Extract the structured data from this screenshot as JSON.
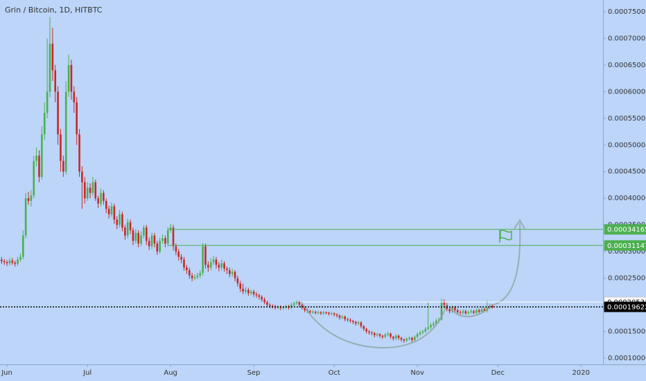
{
  "chart_data": {
    "type": "candlestick",
    "title": "Grin / Bitcoin, 1D, HITBTC",
    "up_color": "#4caf50",
    "down_color": "#c62828",
    "xlim": [
      -0.6,
      224.2
    ],
    "xticks": [
      {
        "value": 2,
        "label": "Jun"
      },
      {
        "value": 32,
        "label": "Jul"
      },
      {
        "value": 63,
        "label": "Aug"
      },
      {
        "value": 94,
        "label": "Sep"
      },
      {
        "value": 124,
        "label": "Oct"
      },
      {
        "value": 155,
        "label": "Nov"
      },
      {
        "value": 185,
        "label": "Dec"
      },
      {
        "value": 216,
        "label": "2020"
      }
    ],
    "ylim": [
      5.71e-05,
      0.000772
    ],
    "yticks": [
      {
        "value": 0.00075,
        "label": "0.00075000"
      },
      {
        "value": 0.0007,
        "label": "0.00070000"
      },
      {
        "value": 0.00065,
        "label": "0.00065000"
      },
      {
        "value": 0.0006,
        "label": "0.00060000"
      },
      {
        "value": 0.00055,
        "label": "0.00055000"
      },
      {
        "value": 0.0005,
        "label": "0.00050000"
      },
      {
        "value": 0.00045,
        "label": "0.00045000"
      },
      {
        "value": 0.0004,
        "label": "0.00040000"
      },
      {
        "value": 0.00035,
        "label": "0.00035000"
      },
      {
        "value": 0.0003,
        "label": "0.00030000"
      },
      {
        "value": 0.00025,
        "label": "0.00025000"
      },
      {
        "value": 0.0002,
        "label": "0.00020000"
      },
      {
        "value": 0.00015,
        "label": "0.00015000"
      },
      {
        "value": 0.0001,
        "label": "0.00010000"
      }
    ],
    "levels": [
      {
        "value": 0.00034165,
        "color": "#4caf50",
        "text_color": "#ffffff",
        "style": "solid",
        "from": 62
      },
      {
        "value": 0.00031147,
        "color": "#4caf50",
        "text_color": "#ffffff",
        "style": "solid",
        "from": 62
      },
      {
        "value": 0.00020531,
        "color": "#ffffff",
        "text_color": "#000000",
        "style": "solid",
        "from": 112
      },
      {
        "value": 0.00019622,
        "color": "#000000",
        "text_color": "#ffffff",
        "style": "dotted",
        "from": -0.6
      }
    ],
    "ohlc": [
      [
        0.000285,
        0.00029,
        0.000277,
        0.000282
      ],
      [
        0.000282,
        0.000286,
        0.000275,
        0.00028
      ],
      [
        0.00028,
        0.000284,
        0.000273,
        0.000278
      ],
      [
        0.000278,
        0.000288,
        0.000274,
        0.000283
      ],
      [
        0.000283,
        0.000288,
        0.000275,
        0.000279
      ],
      [
        0.000279,
        0.000283,
        0.000272,
        0.000277
      ],
      [
        0.000277,
        0.00029,
        0.000273,
        0.000285
      ],
      [
        0.000285,
        0.000296,
        0.000281,
        0.00029
      ],
      [
        0.00029,
        0.00034,
        0.000285,
        0.00033
      ],
      [
        0.00033,
        0.00041,
        0.000325,
        0.0004
      ],
      [
        0.0004,
        0.000412,
        0.000388,
        0.000395
      ],
      [
        0.000395,
        0.000415,
        0.000385,
        0.000405
      ],
      [
        0.000405,
        0.00048,
        0.0004,
        0.00047
      ],
      [
        0.00047,
        0.000495,
        0.00046,
        0.00048
      ],
      [
        0.00048,
        0.00049,
        0.00043,
        0.00044
      ],
      [
        0.00044,
        0.000535,
        0.000435,
        0.00052
      ],
      [
        0.00052,
        0.00058,
        0.00051,
        0.00056
      ],
      [
        0.00056,
        0.0007,
        0.00055,
        0.0006
      ],
      [
        0.0006,
        0.00074,
        0.00059,
        0.00069
      ],
      [
        0.00069,
        0.00072,
        0.00062,
        0.00064
      ],
      [
        0.00064,
        0.00065,
        0.00058,
        0.0006
      ],
      [
        0.0006,
        0.00061,
        0.0005,
        0.00052
      ],
      [
        0.00052,
        0.00053,
        0.00045,
        0.00047
      ],
      [
        0.00047,
        0.00048,
        0.00044,
        0.00045
      ],
      [
        0.00045,
        0.00062,
        0.000445,
        0.0006
      ],
      [
        0.0006,
        0.00067,
        0.00059,
        0.00065
      ],
      [
        0.00065,
        0.00066,
        0.000585,
        0.0006
      ],
      [
        0.0006,
        0.00061,
        0.00056,
        0.00058
      ],
      [
        0.00058,
        0.00059,
        0.0005,
        0.00052
      ],
      [
        0.00052,
        0.00053,
        0.00044,
        0.00045
      ],
      [
        0.00045,
        0.00046,
        0.00038,
        0.00043
      ],
      [
        0.00043,
        0.00044,
        0.00039,
        0.0004
      ],
      [
        0.0004,
        0.00043,
        0.000395,
        0.00042
      ],
      [
        0.00042,
        0.000428,
        0.0004,
        0.00041
      ],
      [
        0.00041,
        0.00044,
        0.000405,
        0.00043
      ],
      [
        0.00043,
        0.000435,
        0.000395,
        0.0004
      ],
      [
        0.0004,
        0.000405,
        0.000382,
        0.00039
      ],
      [
        0.00039,
        0.000418,
        0.000385,
        0.00041
      ],
      [
        0.00041,
        0.000415,
        0.000388,
        0.000395
      ],
      [
        0.000395,
        0.0004,
        0.000372,
        0.00038
      ],
      [
        0.00038,
        0.000386,
        0.000362,
        0.00037
      ],
      [
        0.00037,
        0.000392,
        0.000365,
        0.000385
      ],
      [
        0.000385,
        0.00039,
        0.000352,
        0.00036
      ],
      [
        0.00036,
        0.000366,
        0.000342,
        0.00035
      ],
      [
        0.00035,
        0.000378,
        0.000345,
        0.00037
      ],
      [
        0.00037,
        0.000375,
        0.000338,
        0.000345
      ],
      [
        0.000345,
        0.00035,
        0.000322,
        0.00033
      ],
      [
        0.00033,
        0.000362,
        0.000325,
        0.000355
      ],
      [
        0.000355,
        0.00036,
        0.000333,
        0.00034
      ],
      [
        0.00034,
        0.000345,
        0.000312,
        0.00032
      ],
      [
        0.00032,
        0.000342,
        0.000315,
        0.000335
      ],
      [
        0.000335,
        0.00034,
        0.000308,
        0.000315
      ],
      [
        0.000315,
        0.000338,
        0.00031,
        0.00033
      ],
      [
        0.00033,
        0.00035,
        0.000325,
        0.000345
      ],
      [
        0.000345,
        0.00035,
        0.000312,
        0.00032
      ],
      [
        0.00032,
        0.000326,
        0.000303,
        0.00031
      ],
      [
        0.00031,
        0.000336,
        0.000305,
        0.00033
      ],
      [
        0.00033,
        0.000335,
        0.000308,
        0.000315
      ],
      [
        0.000315,
        0.00032,
        0.000294,
        0.0003
      ],
      [
        0.0003,
        0.000326,
        0.000296,
        0.00032
      ],
      [
        0.00032,
        0.000332,
        0.000315,
        0.000325
      ],
      [
        0.000325,
        0.00033,
        0.000308,
        0.000315
      ],
      [
        0.000315,
        0.000346,
        0.00031,
        0.00034
      ],
      [
        0.00034,
        0.000352,
        0.000335,
        0.000345
      ],
      [
        0.000345,
        0.00035,
        0.000302,
        0.00031
      ],
      [
        0.00031,
        0.000315,
        0.000293,
        0.0003
      ],
      [
        0.0003,
        0.000305,
        0.000283,
        0.00029
      ],
      [
        0.00029,
        0.000295,
        0.000278,
        0.000285
      ],
      [
        0.000285,
        0.00029,
        0.000264,
        0.00027
      ],
      [
        0.00027,
        0.000275,
        0.000258,
        0.000265
      ],
      [
        0.000265,
        0.00027,
        0.000249,
        0.000255
      ],
      [
        0.000255,
        0.00026,
        0.000244,
        0.00025
      ],
      [
        0.00025,
        0.000257,
        0.000246,
        0.000252
      ],
      [
        0.000252,
        0.00026,
        0.000248,
        0.000255
      ],
      [
        0.000255,
        0.000265,
        0.00025,
        0.00026
      ],
      [
        0.00026,
        0.000316,
        0.000255,
        0.00031
      ],
      [
        0.00031,
        0.000315,
        0.000268,
        0.000275
      ],
      [
        0.000275,
        0.000282,
        0.000262,
        0.00027
      ],
      [
        0.00027,
        0.000288,
        0.000265,
        0.00028
      ],
      [
        0.00028,
        0.000292,
        0.000275,
        0.000285
      ],
      [
        0.000285,
        0.00029,
        0.000268,
        0.000275
      ],
      [
        0.000275,
        0.00028,
        0.000263,
        0.00027
      ],
      [
        0.00027,
        0.000285,
        0.000265,
        0.000278
      ],
      [
        0.000278,
        0.000282,
        0.000262,
        0.000268
      ],
      [
        0.000268,
        0.000272,
        0.000258,
        0.000265
      ],
      [
        0.000265,
        0.00027,
        0.000252,
        0.000258
      ],
      [
        0.000258,
        0.000268,
        0.000253,
        0.000262
      ],
      [
        0.000262,
        0.000265,
        0.000244,
        0.00025
      ],
      [
        0.00025,
        0.000255,
        0.000234,
        0.00024
      ],
      [
        0.00024,
        0.000245,
        0.000224,
        0.00023
      ],
      [
        0.00023,
        0.00024,
        0.00022,
        0.000225
      ],
      [
        0.000225,
        0.000233,
        0.00022,
        0.000228
      ],
      [
        0.000228,
        0.000232,
        0.000217,
        0.000222
      ],
      [
        0.000222,
        0.000229,
        0.000218,
        0.000225
      ],
      [
        0.000225,
        0.000228,
        0.000215,
        0.00022
      ],
      [
        0.00022,
        0.000224,
        0.000213,
        0.000218
      ],
      [
        0.000218,
        0.000221,
        0.00021,
        0.000215
      ],
      [
        0.000215,
        0.000218,
        0.000206,
        0.00021
      ],
      [
        0.00021,
        0.000214,
        0.000201,
        0.000205
      ],
      [
        0.000205,
        0.000208,
        0.000196,
        0.0002
      ],
      [
        0.0002,
        0.000203,
        0.000194,
        0.000198
      ],
      [
        0.000198,
        0.000201,
        0.000193,
        0.000197
      ],
      [
        0.000197,
        0.0002,
        0.000191,
        0.000195
      ],
      [
        0.000195,
        0.000199,
        0.000192,
        0.000196
      ],
      [
        0.000196,
        0.000199,
        0.00019,
        0.000194
      ],
      [
        0.000194,
        0.000198,
        0.000191,
        0.000195
      ],
      [
        0.000195,
        0.0002,
        0.000192,
        0.000197
      ],
      [
        0.000197,
        0.0002,
        0.000191,
        0.000195
      ],
      [
        0.000195,
        0.000204,
        0.000192,
        0.0002
      ],
      [
        0.0002,
        0.000206,
        0.000197,
        0.000203
      ],
      [
        0.000203,
        0.000208,
        0.0002,
        0.000205
      ],
      [
        0.000205,
        0.000207,
        0.000196,
        0.0002
      ],
      [
        0.0002,
        0.000202,
        0.000191,
        0.000195
      ],
      [
        0.000195,
        0.000197,
        0.000186,
        0.00019
      ],
      [
        0.00019,
        0.000193,
        0.000185,
        0.000188
      ],
      [
        0.000188,
        0.000191,
        0.000183,
        0.000186
      ],
      [
        0.000186,
        0.00019,
        0.000183,
        0.000187
      ],
      [
        0.000187,
        0.000189,
        0.000182,
        0.000185
      ],
      [
        0.000185,
        0.000189,
        0.000182,
        0.000186
      ],
      [
        0.000186,
        0.000188,
        0.000181,
        0.000184
      ],
      [
        0.000184,
        0.000189,
        0.000181,
        0.000186
      ],
      [
        0.000186,
        0.000188,
        0.000182,
        0.000185
      ],
      [
        0.000185,
        0.000187,
        0.00018,
        0.000183
      ],
      [
        0.000183,
        0.000187,
        0.00018,
        0.000184
      ],
      [
        0.000184,
        0.000186,
        0.000178,
        0.000182
      ],
      [
        0.000182,
        0.000184,
        0.000176,
        0.00018
      ],
      [
        0.00018,
        0.000182,
        0.000172,
        0.000176
      ],
      [
        0.000176,
        0.000181,
        0.000173,
        0.000178
      ],
      [
        0.000178,
        0.00018,
        0.000169,
        0.000173
      ],
      [
        0.000173,
        0.000176,
        0.000168,
        0.000172
      ],
      [
        0.000172,
        0.000175,
        0.000166,
        0.00017
      ],
      [
        0.00017,
        0.000172,
        0.000164,
        0.000168
      ],
      [
        0.000168,
        0.00017,
        0.000161,
        0.000165
      ],
      [
        0.000165,
        0.00017,
        0.000162,
        0.000167
      ],
      [
        0.000167,
        0.000169,
        0.000156,
        0.00016
      ],
      [
        0.00016,
        0.000162,
        0.000151,
        0.000155
      ],
      [
        0.000155,
        0.000157,
        0.000146,
        0.00015
      ],
      [
        0.00015,
        0.000153,
        0.000144,
        0.000148
      ],
      [
        0.000148,
        0.000151,
        0.000143,
        0.000147
      ],
      [
        0.000147,
        0.000149,
        0.000139,
        0.000143
      ],
      [
        0.000143,
        0.000148,
        0.00014,
        0.000145
      ],
      [
        0.000145,
        0.000147,
        0.000138,
        0.000142
      ],
      [
        0.000142,
        0.000144,
        0.000136,
        0.00014
      ],
      [
        0.00014,
        0.000147,
        0.000137,
        0.000144
      ],
      [
        0.000144,
        0.000149,
        0.000141,
        0.000146
      ],
      [
        0.000146,
        0.000148,
        0.000136,
        0.00014
      ],
      [
        0.00014,
        0.000142,
        0.000133,
        0.000137
      ],
      [
        0.000137,
        0.000145,
        0.000134,
        0.000142
      ],
      [
        0.000142,
        0.000144,
        0.000134,
        0.000138
      ],
      [
        0.000138,
        0.00014,
        0.000131,
        0.000135
      ],
      [
        0.000135,
        0.000137,
        0.000129,
        0.000133
      ],
      [
        0.000133,
        0.000139,
        0.00013,
        0.000136
      ],
      [
        0.000136,
        0.000141,
        0.000133,
        0.000138
      ],
      [
        0.000138,
        0.00014,
        0.00013,
        0.000134
      ],
      [
        0.000134,
        0.000143,
        0.000131,
        0.00014
      ],
      [
        0.00014,
        0.000148,
        0.000137,
        0.000145
      ],
      [
        0.000145,
        0.000151,
        0.000142,
        0.000148
      ],
      [
        0.000148,
        0.000153,
        0.000145,
        0.00015
      ],
      [
        0.00015,
        0.000158,
        0.000147,
        0.000155
      ],
      [
        0.000155,
        0.000205,
        0.000152,
        0.000158
      ],
      [
        0.000158,
        0.000166,
        0.000154,
        0.000162
      ],
      [
        0.000162,
        0.000169,
        0.000158,
        0.000165
      ],
      [
        0.000165,
        0.000174,
        0.00016,
        0.00017
      ],
      [
        0.00017,
        0.000176,
        0.000166,
        0.000172
      ],
      [
        0.000172,
        0.000212,
        0.00017,
        0.000205
      ],
      [
        0.000205,
        0.00021,
        0.000194,
        0.0002
      ],
      [
        0.0002,
        0.000204,
        0.000188,
        0.000192
      ],
      [
        0.000192,
        0.000196,
        0.000184,
        0.000188
      ],
      [
        0.000188,
        0.000199,
        0.000185,
        0.000195
      ],
      [
        0.000195,
        0.000198,
        0.000186,
        0.00019
      ],
      [
        0.00019,
        0.000193,
        0.000183,
        0.000186
      ],
      [
        0.000186,
        0.00019,
        0.000182,
        0.000185
      ],
      [
        0.000185,
        0.000192,
        0.000182,
        0.000188
      ],
      [
        0.000188,
        0.000191,
        0.000181,
        0.000184
      ],
      [
        0.000184,
        0.00019,
        0.000181,
        0.000186
      ],
      [
        0.000186,
        0.000192,
        0.000183,
        0.000188
      ],
      [
        0.000188,
        0.000191,
        0.000182,
        0.000185
      ],
      [
        0.000185,
        0.000194,
        0.000182,
        0.00019
      ],
      [
        0.00019,
        0.000193,
        0.000184,
        0.000187
      ],
      [
        0.000187,
        0.000196,
        0.000184,
        0.000192
      ],
      [
        0.000192,
        0.000195,
        0.000186,
        0.000189
      ],
      [
        0.000189,
        0.000208,
        0.000186,
        0.000195
      ],
      [
        0.000195,
        0.000202,
        0.000192,
        0.000198
      ],
      [
        0.000198,
        0.000201,
        0.000193,
        0.000196
      ]
    ]
  }
}
